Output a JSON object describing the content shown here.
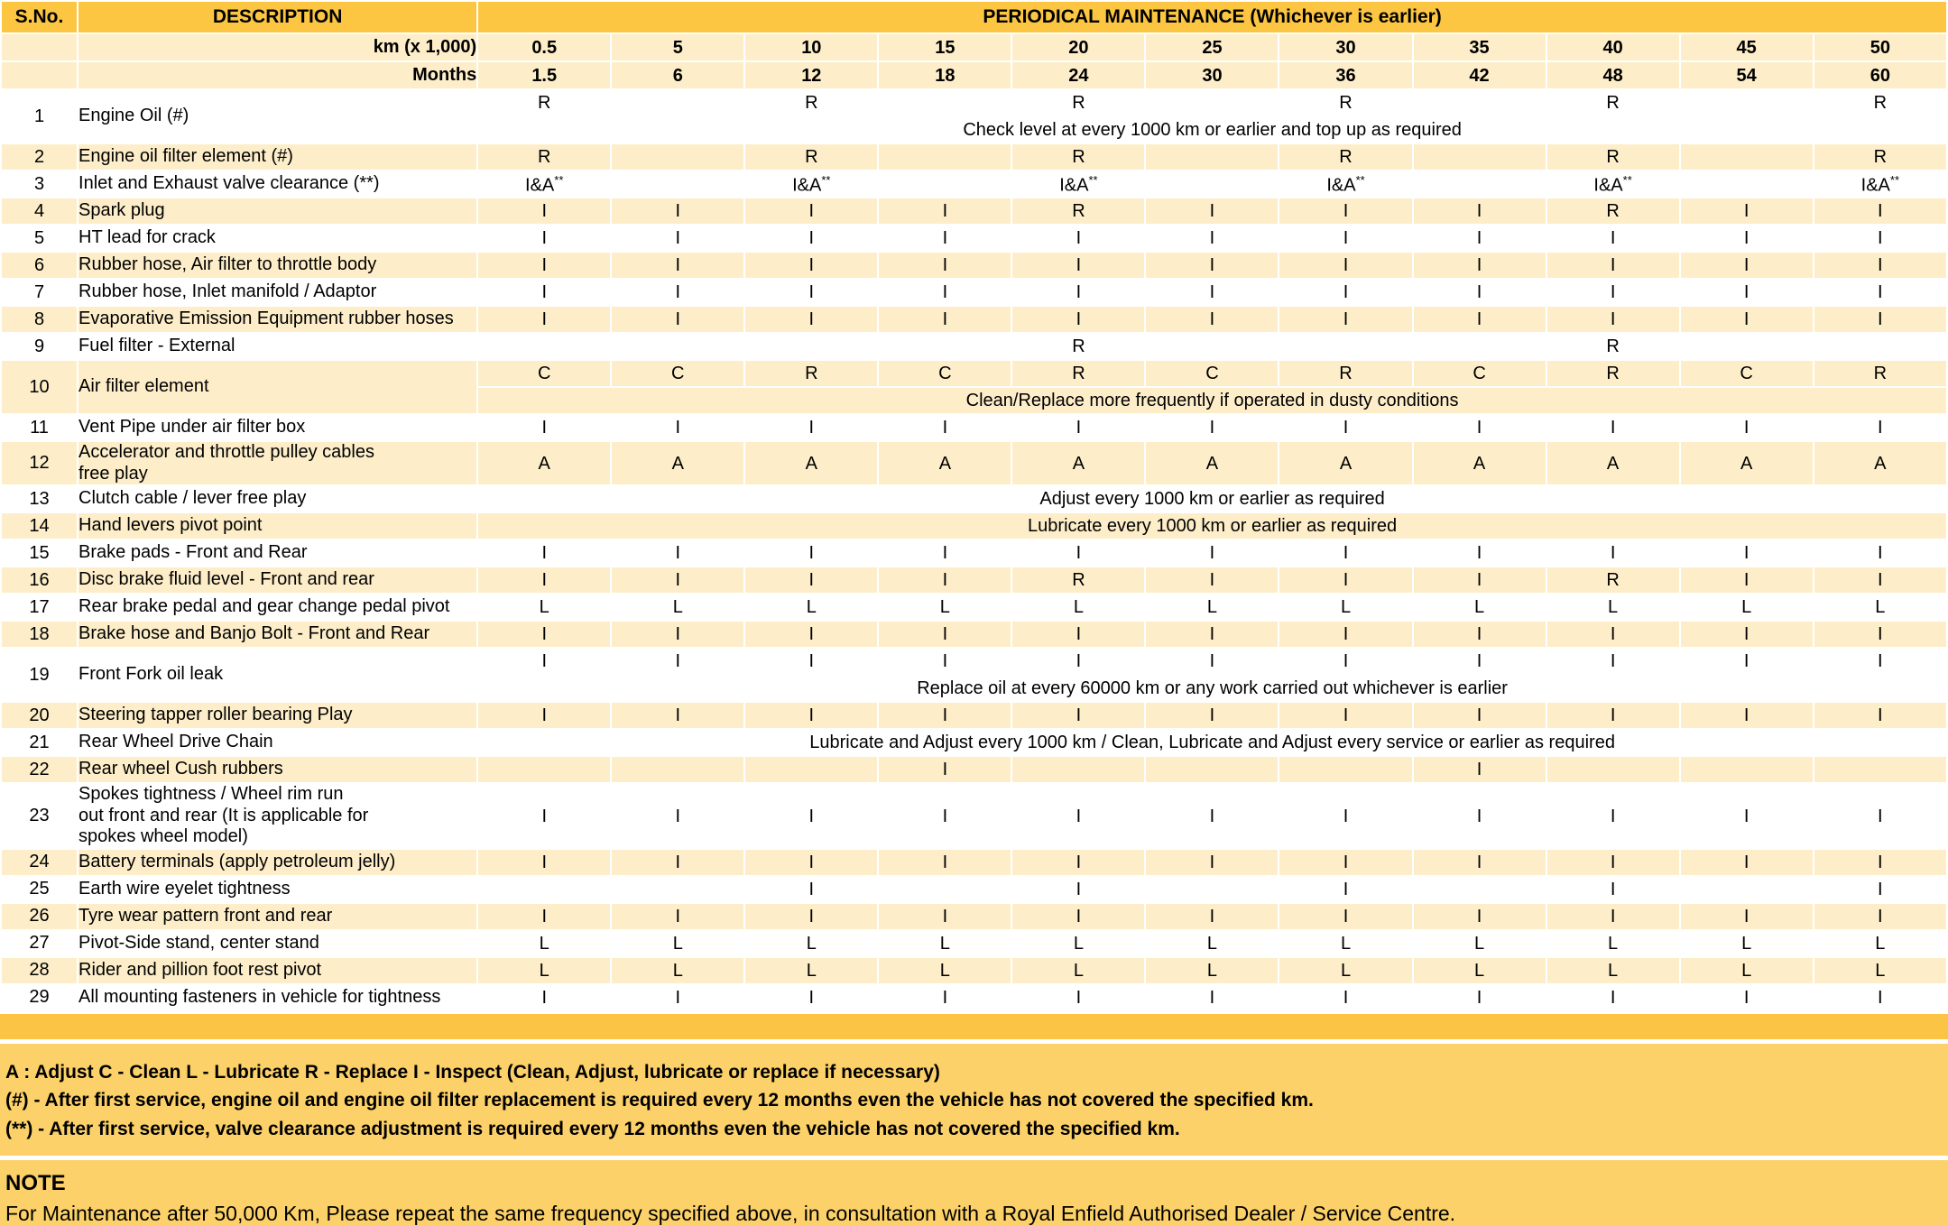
{
  "colors": {
    "header_gold": "#fcc643",
    "row_cream": "#fdeec9",
    "separator_band_gold": "#fbc445",
    "footer_panel_gold": "#fcd169"
  },
  "table": {
    "header": {
      "sno": "S.No.",
      "description": "DESCRIPTION",
      "periodical": "PERIODICAL MAINTENANCE (Whichever is earlier)",
      "km_label": "km (x 1,000)",
      "months_label": "Months",
      "km_values": [
        "0.5",
        "5",
        "10",
        "15",
        "20",
        "25",
        "30",
        "35",
        "40",
        "45",
        "50"
      ],
      "month_values": [
        "1.5",
        "6",
        "12",
        "18",
        "24",
        "30",
        "36",
        "42",
        "48",
        "54",
        "60"
      ]
    },
    "rows": [
      {
        "sno": "1",
        "desc": "Engine Oil (#)",
        "bg": "white",
        "lines": [
          {
            "cells": [
              "R",
              "",
              "R",
              "",
              "R",
              "",
              "R",
              "",
              "R",
              "",
              "R"
            ]
          },
          {
            "span": "Check level at every 1000 km or earlier and top up as required"
          }
        ]
      },
      {
        "sno": "2",
        "desc": "Engine oil filter element (#)",
        "bg": "cream",
        "lines": [
          {
            "cells": [
              "R",
              "",
              "R",
              "",
              "R",
              "",
              "R",
              "",
              "R",
              "",
              "R"
            ]
          }
        ]
      },
      {
        "sno": "3",
        "desc": "Inlet and Exhaust valve clearance (**)",
        "bg": "white",
        "lines": [
          {
            "cells": [
              "I&A**",
              "",
              "I&A**",
              "",
              "I&A**",
              "",
              "I&A**",
              "",
              "I&A**",
              "",
              "I&A**"
            ]
          }
        ]
      },
      {
        "sno": "4",
        "desc": "Spark plug",
        "bg": "cream",
        "lines": [
          {
            "cells": [
              "I",
              "I",
              "I",
              "I",
              "R",
              "I",
              "I",
              "I",
              "R",
              "I",
              "I"
            ]
          }
        ]
      },
      {
        "sno": "5",
        "desc": "HT lead for crack",
        "bg": "white",
        "lines": [
          {
            "cells": [
              "I",
              "I",
              "I",
              "I",
              "I",
              "I",
              "I",
              "I",
              "I",
              "I",
              "I"
            ]
          }
        ]
      },
      {
        "sno": "6",
        "desc": "Rubber hose, Air filter to throttle body",
        "bg": "cream",
        "lines": [
          {
            "cells": [
              "I",
              "I",
              "I",
              "I",
              "I",
              "I",
              "I",
              "I",
              "I",
              "I",
              "I"
            ]
          }
        ]
      },
      {
        "sno": "7",
        "desc": "Rubber hose, Inlet manifold / Adaptor",
        "bg": "white",
        "lines": [
          {
            "cells": [
              "I",
              "I",
              "I",
              "I",
              "I",
              "I",
              "I",
              "I",
              "I",
              "I",
              "I"
            ]
          }
        ]
      },
      {
        "sno": "8",
        "desc": "Evaporative Emission Equipment rubber hoses",
        "bg": "cream",
        "lines": [
          {
            "cells": [
              "I",
              "I",
              "I",
              "I",
              "I",
              "I",
              "I",
              "I",
              "I",
              "I",
              "I"
            ]
          }
        ]
      },
      {
        "sno": "9",
        "desc": "Fuel filter - External",
        "bg": "white",
        "lines": [
          {
            "cells": [
              "",
              "",
              "",
              "",
              "R",
              "",
              "",
              "",
              "R",
              "",
              ""
            ]
          }
        ]
      },
      {
        "sno": "10",
        "desc": "Air filter element",
        "bg": "cream",
        "lines": [
          {
            "cells": [
              "C",
              "C",
              "R",
              "C",
              "R",
              "C",
              "R",
              "C",
              "R",
              "C",
              "R"
            ]
          },
          {
            "span": "Clean/Replace more frequently if operated in dusty conditions"
          }
        ]
      },
      {
        "sno": "11",
        "desc": "Vent Pipe under air filter box",
        "bg": "white",
        "lines": [
          {
            "cells": [
              "I",
              "I",
              "I",
              "I",
              "I",
              "I",
              "I",
              "I",
              "I",
              "I",
              "I"
            ]
          }
        ]
      },
      {
        "sno": "12",
        "desc": "Accelerator and throttle pulley cables\nfree play",
        "bg": "cream",
        "lines": [
          {
            "cells": [
              "A",
              "A",
              "A",
              "A",
              "A",
              "A",
              "A",
              "A",
              "A",
              "A",
              "A"
            ]
          }
        ]
      },
      {
        "sno": "13",
        "desc": "Clutch cable / lever free play",
        "bg": "white",
        "lines": [
          {
            "span": "Adjust every 1000 km or earlier as required"
          }
        ]
      },
      {
        "sno": "14",
        "desc": "Hand levers pivot point",
        "bg": "cream",
        "lines": [
          {
            "span": "Lubricate every 1000 km or earlier as required"
          }
        ]
      },
      {
        "sno": "15",
        "desc": "Brake pads - Front and Rear",
        "bg": "white",
        "lines": [
          {
            "cells": [
              "I",
              "I",
              "I",
              "I",
              "I",
              "I",
              "I",
              "I",
              "I",
              "I",
              "I"
            ]
          }
        ]
      },
      {
        "sno": "16",
        "desc": "Disc brake fluid level - Front and rear",
        "bg": "cream",
        "lines": [
          {
            "cells": [
              "I",
              "I",
              "I",
              "I",
              "R",
              "I",
              "I",
              "I",
              "R",
              "I",
              "I"
            ]
          }
        ]
      },
      {
        "sno": "17",
        "desc": "Rear brake pedal and gear change pedal pivot",
        "bg": "white",
        "lines": [
          {
            "cells": [
              "L",
              "L",
              "L",
              "L",
              "L",
              "L",
              "L",
              "L",
              "L",
              "L",
              "L"
            ]
          }
        ]
      },
      {
        "sno": "18",
        "desc": "Brake hose and Banjo Bolt - Front and Rear",
        "bg": "cream",
        "lines": [
          {
            "cells": [
              "I",
              "I",
              "I",
              "I",
              "I",
              "I",
              "I",
              "I",
              "I",
              "I",
              "I"
            ]
          }
        ]
      },
      {
        "sno": "19",
        "desc": "Front Fork oil leak",
        "bg": "white",
        "lines": [
          {
            "cells": [
              "I",
              "I",
              "I",
              "I",
              "I",
              "I",
              "I",
              "I",
              "I",
              "I",
              "I"
            ]
          },
          {
            "span": "Replace oil at every 60000 km or any work carried out whichever is earlier"
          }
        ]
      },
      {
        "sno": "20",
        "desc": "Steering tapper roller bearing Play",
        "bg": "cream",
        "lines": [
          {
            "cells": [
              "I",
              "I",
              "I",
              "I",
              "I",
              "I",
              "I",
              "I",
              "I",
              "I",
              "I"
            ]
          }
        ]
      },
      {
        "sno": "21",
        "desc": "Rear Wheel Drive Chain",
        "bg": "white",
        "lines": [
          {
            "span": "Lubricate and Adjust every 1000 km / Clean, Lubricate and Adjust every service or earlier as required"
          }
        ]
      },
      {
        "sno": "22",
        "desc": "Rear wheel Cush rubbers",
        "bg": "cream",
        "lines": [
          {
            "cells": [
              "",
              "",
              "",
              "I",
              "",
              "",
              "",
              "I",
              "",
              "",
              ""
            ]
          }
        ]
      },
      {
        "sno": "23",
        "desc": "Spokes tightness / Wheel rim run\nout front and rear (It is applicable for\nspokes wheel model)",
        "bg": "white",
        "lines": [
          {
            "cells": [
              "I",
              "I",
              "I",
              "I",
              "I",
              "I",
              "I",
              "I",
              "I",
              "I",
              "I"
            ]
          }
        ]
      },
      {
        "sno": "24",
        "desc": "Battery terminals (apply petroleum jelly)",
        "bg": "cream",
        "lines": [
          {
            "cells": [
              "I",
              "I",
              "I",
              "I",
              "I",
              "I",
              "I",
              "I",
              "I",
              "I",
              "I"
            ]
          }
        ]
      },
      {
        "sno": "25",
        "desc": "Earth wire eyelet tightness",
        "bg": "white",
        "lines": [
          {
            "cells": [
              "",
              "",
              "I",
              "",
              "I",
              "",
              "I",
              "",
              "I",
              "",
              "I"
            ]
          }
        ]
      },
      {
        "sno": "26",
        "desc": "Tyre wear pattern front and rear",
        "bg": "cream",
        "lines": [
          {
            "cells": [
              "I",
              "I",
              "I",
              "I",
              "I",
              "I",
              "I",
              "I",
              "I",
              "I",
              "I"
            ]
          }
        ]
      },
      {
        "sno": "27",
        "desc": "Pivot-Side stand, center stand",
        "bg": "white",
        "lines": [
          {
            "cells": [
              "L",
              "L",
              "L",
              "L",
              "L",
              "L",
              "L",
              "L",
              "L",
              "L",
              "L"
            ]
          }
        ]
      },
      {
        "sno": "28",
        "desc": "Rider and pillion foot rest pivot",
        "bg": "cream",
        "lines": [
          {
            "cells": [
              "L",
              "L",
              "L",
              "L",
              "L",
              "L",
              "L",
              "L",
              "L",
              "L",
              "L"
            ]
          }
        ]
      },
      {
        "sno": "29",
        "desc": "All mounting fasteners in vehicle for tightness",
        "bg": "white",
        "lines": [
          {
            "cells": [
              "I",
              "I",
              "I",
              "I",
              "I",
              "I",
              "I",
              "I",
              "I",
              "I",
              "I"
            ]
          }
        ]
      }
    ]
  },
  "legend": {
    "lines": [
      "A : Adjust C - Clean L - Lubricate R - Replace I - Inspect (Clean, Adjust, lubricate or replace if necessary)",
      "(#) - After first service, engine oil and engine oil filter replacement is required every 12 months even the vehicle has not covered the specified km.",
      "(**) - After first service, valve clearance adjustment is required every 12 months even the vehicle has not covered the specified km."
    ]
  },
  "note": {
    "title": "NOTE",
    "body": "For Maintenance after 50,000 Km, Please repeat the same frequency specified above, in consultation with a Royal Enfield Authorised Dealer / Service Centre."
  }
}
